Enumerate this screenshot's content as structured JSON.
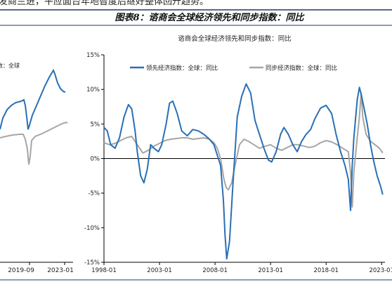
{
  "top_text": "发商兰进，平应面台年地智度后继好整体回升趋势。",
  "figure_title": "图表8：谘商会全球经济领先和同步指数：同比",
  "left_chart": {
    "legend_fragment": "数：全球",
    "x_ticks": [
      "2019-09",
      "2023-01"
    ]
  },
  "chart_data": {
    "type": "line",
    "title": "谘商会全球经济领先和同步指数：同比",
    "xlabel": "",
    "ylabel": "",
    "ylim": [
      -15,
      15
    ],
    "y_ticks": [
      "15%",
      "10%",
      "5%",
      "0%",
      "-5%",
      "-10%",
      "-15%"
    ],
    "y_tick_values": [
      15,
      10,
      5,
      0,
      -5,
      -10,
      -15
    ],
    "x_ticks": [
      "1998-01",
      "2003-01",
      "2008-01",
      "2013-01",
      "2018-01",
      "2023-01"
    ],
    "xlim": [
      1998.0,
      2023.3
    ],
    "grid": false,
    "legend_position": "top",
    "series": [
      {
        "name": "领先经济指数：全球：同比",
        "color": "#2a6fb5",
        "x": [
          1998.0,
          1998.3,
          1998.6,
          1999.0,
          1999.4,
          1999.8,
          2000.2,
          2000.5,
          2000.8,
          2001.0,
          2001.3,
          2001.6,
          2001.9,
          2002.2,
          2002.5,
          2002.9,
          2003.2,
          2003.6,
          2003.9,
          2004.2,
          2004.6,
          2005.0,
          2005.5,
          2006.0,
          2006.5,
          2007.0,
          2007.5,
          2007.9,
          2008.2,
          2008.5,
          2008.75,
          2008.9,
          2009.05,
          2009.3,
          2009.6,
          2010.0,
          2010.4,
          2010.8,
          2011.2,
          2011.6,
          2012.0,
          2012.4,
          2012.8,
          2013.1,
          2013.5,
          2013.9,
          2014.2,
          2014.6,
          2015.0,
          2015.4,
          2015.8,
          2016.2,
          2016.6,
          2017.0,
          2017.5,
          2018.0,
          2018.5,
          2018.9,
          2019.3,
          2019.7,
          2020.0,
          2020.2,
          2020.35,
          2020.5,
          2020.8,
          2021.0,
          2021.2,
          2021.45,
          2021.7,
          2022.0,
          2022.3,
          2022.6,
          2022.9,
          2023.1
        ],
        "values": [
          4.5,
          4.0,
          2.0,
          1.5,
          3.0,
          6.0,
          7.8,
          7.2,
          4.0,
          1.0,
          -2.5,
          -3.5,
          -1.5,
          2.0,
          1.5,
          1.0,
          2.0,
          5.0,
          8.0,
          8.3,
          6.5,
          4.0,
          3.3,
          4.2,
          4.0,
          3.5,
          2.8,
          2.0,
          0.5,
          -1.0,
          -6.0,
          -11.0,
          -14.5,
          -12.0,
          -4.0,
          6.0,
          9.0,
          10.8,
          9.5,
          5.5,
          3.5,
          1.5,
          -0.2,
          -0.5,
          1.0,
          3.5,
          4.5,
          3.5,
          2.0,
          1.0,
          2.5,
          3.5,
          4.2,
          5.8,
          7.3,
          7.7,
          6.5,
          3.5,
          1.0,
          -1.0,
          -3.0,
          -7.5,
          -1.0,
          3.0,
          8.5,
          10.3,
          9.0,
          7.0,
          5.0,
          2.0,
          -0.5,
          -2.5,
          -4.0,
          -5.2
        ]
      },
      {
        "name": "同步经济指数：全球：同比",
        "color": "#a6a6a6",
        "x": [
          1998.0,
          1998.5,
          1999.0,
          1999.5,
          2000.0,
          2000.5,
          2001.0,
          2001.5,
          2002.0,
          2002.5,
          2003.0,
          2003.5,
          2004.0,
          2004.5,
          2005.0,
          2005.5,
          2006.0,
          2006.5,
          2007.0,
          2007.5,
          2007.9,
          2008.2,
          2008.5,
          2008.8,
          2009.0,
          2009.2,
          2009.5,
          2009.8,
          2010.2,
          2010.6,
          2011.0,
          2011.5,
          2012.0,
          2012.5,
          2013.0,
          2013.5,
          2014.0,
          2014.5,
          2015.0,
          2015.5,
          2016.0,
          2016.5,
          2017.0,
          2017.5,
          2018.0,
          2018.5,
          2019.0,
          2019.5,
          2020.0,
          2020.2,
          2020.35,
          2020.5,
          2020.8,
          2021.0,
          2021.15,
          2021.3,
          2021.6,
          2022.0,
          2022.4,
          2022.8,
          2023.1
        ],
        "values": [
          2.3,
          2.0,
          2.2,
          2.6,
          3.0,
          3.2,
          2.0,
          0.8,
          1.2,
          1.8,
          2.2,
          2.6,
          2.8,
          2.9,
          3.0,
          3.0,
          2.8,
          2.9,
          3.0,
          2.8,
          2.3,
          1.5,
          0.0,
          -3.0,
          -4.2,
          -4.5,
          -3.5,
          -1.0,
          2.0,
          2.8,
          2.5,
          2.0,
          1.5,
          1.8,
          2.0,
          1.5,
          1.2,
          1.6,
          2.0,
          2.0,
          1.8,
          1.6,
          1.8,
          2.3,
          2.6,
          2.4,
          2.0,
          1.5,
          1.0,
          -2.0,
          -7.0,
          -2.0,
          3.0,
          6.0,
          9.5,
          6.0,
          3.5,
          2.5,
          2.0,
          1.5,
          0.8
        ]
      }
    ]
  }
}
